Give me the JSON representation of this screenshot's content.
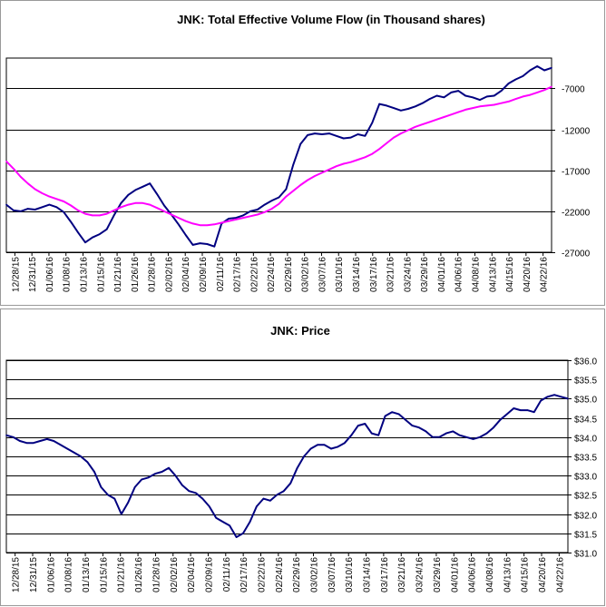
{
  "colors": {
    "flow": "#000080",
    "average": "#ff00ff",
    "price": "#000080",
    "grid": "#000000",
    "frame": "#999999"
  },
  "chart_data": [
    {
      "type": "line",
      "title": "JNK: Total Effective Volume Flow (in Thousand shares)",
      "y_ticks": [
        -27000,
        -22000,
        -17000,
        -12000,
        -7000
      ],
      "y_tick_labels": [
        "-27000",
        "-22000",
        "-17000",
        "-12000",
        "-7000"
      ],
      "ylim": [
        -27000,
        -3300
      ],
      "y_axis_side": "right",
      "grid": "horizontal",
      "x_tick_labels": [
        "12/28/15",
        "12/31/15",
        "01/06/16",
        "01/08/16",
        "01/13/16",
        "01/15/16",
        "01/21/16",
        "01/26/16",
        "01/28/16",
        "02/02/16",
        "02/04/16",
        "02/09/16",
        "02/11/16",
        "02/17/16",
        "02/22/16",
        "02/24/16",
        "02/29/16",
        "03/02/16",
        "03/07/16",
        "03/10/16",
        "03/14/16",
        "03/17/16",
        "03/21/16",
        "03/24/16",
        "03/29/16",
        "04/01/16",
        "04/06/16",
        "04/08/16",
        "04/13/16",
        "04/15/16",
        "04/20/16",
        "04/22/16"
      ],
      "series": [
        {
          "name": "",
          "color_key": "flow",
          "values": [
            -21200,
            -21900,
            -22000,
            -21700,
            -21800,
            -21500,
            -21200,
            -21500,
            -22100,
            -23300,
            -24600,
            -25800,
            -25200,
            -24800,
            -24200,
            -22500,
            -21000,
            -20000,
            -19400,
            -19000,
            -18600,
            -19900,
            -21300,
            -22400,
            -23600,
            -24900,
            -26100,
            -25900,
            -26000,
            -26300,
            -23500,
            -22900,
            -22800,
            -22500,
            -22000,
            -21800,
            -21200,
            -20700,
            -20300,
            -19300,
            -16300,
            -13800,
            -12700,
            -12500,
            -12600,
            -12500,
            -12800,
            -13100,
            -13000,
            -12600,
            -12800,
            -11200,
            -8900,
            -9100,
            -9400,
            -9700,
            -9500,
            -9200,
            -8800,
            -8300,
            -7900,
            -8100,
            -7500,
            -7300,
            -7900,
            -8100,
            -8400,
            -8000,
            -7900,
            -7300,
            -6400,
            -5900,
            -5500,
            -4800,
            -4300,
            -4800,
            -4500
          ]
        },
        {
          "name": "",
          "color_key": "average",
          "values": [
            -15900,
            -16800,
            -17800,
            -18600,
            -19300,
            -19800,
            -20200,
            -20500,
            -20800,
            -21300,
            -21900,
            -22300,
            -22500,
            -22500,
            -22300,
            -21900,
            -21500,
            -21200,
            -21000,
            -21000,
            -21200,
            -21600,
            -22000,
            -22400,
            -22800,
            -23200,
            -23500,
            -23700,
            -23700,
            -23600,
            -23400,
            -23200,
            -23000,
            -22800,
            -22600,
            -22400,
            -22100,
            -21700,
            -21100,
            -20200,
            -19500,
            -18800,
            -18200,
            -17700,
            -17300,
            -16900,
            -16500,
            -16200,
            -16000,
            -15700,
            -15400,
            -15000,
            -14400,
            -13700,
            -13000,
            -12500,
            -12100,
            -11700,
            -11400,
            -11100,
            -10800,
            -10500,
            -10200,
            -9900,
            -9600,
            -9400,
            -9200,
            -9100,
            -9000,
            -8800,
            -8600,
            -8300,
            -8000,
            -7800,
            -7500,
            -7200,
            -6800
          ]
        }
      ]
    },
    {
      "type": "line",
      "title": "JNK: Price",
      "y_ticks": [
        31.0,
        31.5,
        32.0,
        32.5,
        33.0,
        33.5,
        34.0,
        34.5,
        35.0,
        35.5,
        36.0
      ],
      "y_tick_labels": [
        "$31.0",
        "$31.5",
        "$32.0",
        "$32.5",
        "$33.0",
        "$33.5",
        "$34.0",
        "$34.5",
        "$35.0",
        "$35.5",
        "$36.0"
      ],
      "ylim": [
        31.0,
        36.0
      ],
      "y_axis_side": "right",
      "grid": "horizontal",
      "x_tick_labels": [
        "12/28/15",
        "12/31/15",
        "01/06/16",
        "01/08/16",
        "01/13/16",
        "01/15/16",
        "01/21/16",
        "01/26/16",
        "01/28/16",
        "02/02/16",
        "02/04/16",
        "02/09/16",
        "02/11/16",
        "02/17/16",
        "02/22/16",
        "02/24/16",
        "02/29/16",
        "03/02/16",
        "03/07/16",
        "03/10/16",
        "03/14/16",
        "03/17/16",
        "03/21/16",
        "03/24/16",
        "03/29/16",
        "04/01/16",
        "04/06/16",
        "04/08/16",
        "04/13/16",
        "04/15/16",
        "04/20/16",
        "04/22/16"
      ],
      "series": [
        {
          "name": "",
          "color_key": "price",
          "values": [
            34.05,
            34.0,
            33.9,
            33.85,
            33.85,
            33.9,
            33.95,
            33.9,
            33.8,
            33.7,
            33.6,
            33.5,
            33.35,
            33.1,
            32.7,
            32.5,
            32.4,
            32.0,
            32.3,
            32.7,
            32.9,
            32.95,
            33.05,
            33.1,
            33.2,
            33.0,
            32.75,
            32.6,
            32.55,
            32.4,
            32.2,
            31.9,
            31.8,
            31.7,
            31.4,
            31.5,
            31.8,
            32.2,
            32.4,
            32.35,
            32.5,
            32.6,
            32.8,
            33.2,
            33.5,
            33.7,
            33.8,
            33.8,
            33.7,
            33.75,
            33.85,
            34.05,
            34.3,
            34.35,
            34.1,
            34.05,
            34.55,
            34.65,
            34.6,
            34.45,
            34.3,
            34.25,
            34.15,
            34.0,
            34.0,
            34.1,
            34.15,
            34.05,
            34.0,
            33.95,
            34.0,
            34.1,
            34.25,
            34.45,
            34.6,
            34.75,
            34.7,
            34.7,
            34.65,
            34.95,
            35.05,
            35.1,
            35.05,
            35.0
          ]
        }
      ]
    }
  ]
}
